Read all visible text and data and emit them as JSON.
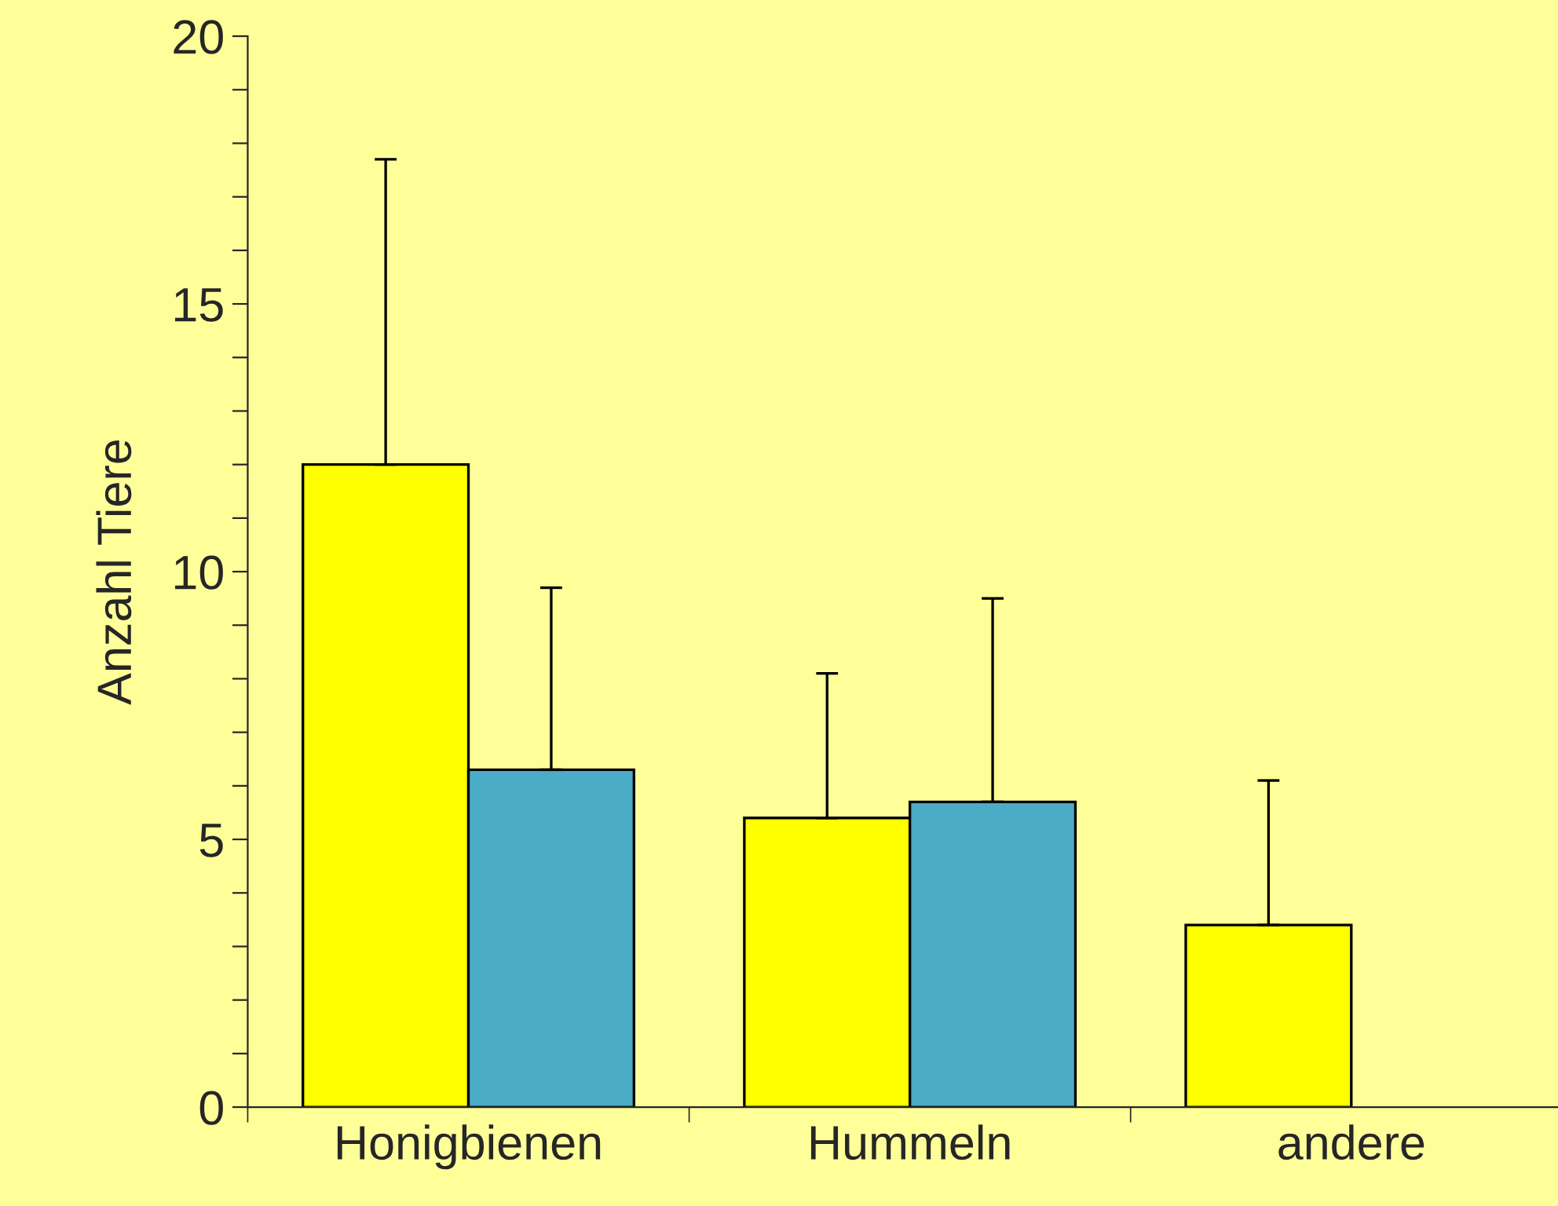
{
  "chart_data": {
    "type": "bar",
    "ylabel": "Anzahl Tiere",
    "categories": [
      "Honigbienen",
      "Hummeln",
      "andere"
    ],
    "series": [
      {
        "color": "#ffff00",
        "values": [
          12,
          5.4,
          3.4
        ],
        "errors": [
          [
            12,
            17.7
          ],
          [
            5.4,
            8.1
          ],
          [
            3.4,
            6.1
          ]
        ]
      },
      {
        "color": "#4bacc6",
        "values": [
          6.3,
          5.7,
          null
        ],
        "errors": [
          [
            6.3,
            9.7
          ],
          [
            5.7,
            9.5
          ],
          null
        ]
      }
    ],
    "ylim": [
      0,
      20
    ],
    "yticks": [
      0,
      {
        "value": 1,
        "label": null
      },
      {
        "value": 2,
        "label": null
      },
      {
        "value": 3,
        "label": null
      },
      {
        "value": 4,
        "label": null
      },
      5,
      {
        "value": 6,
        "label": null
      },
      {
        "value": 7,
        "label": null
      },
      {
        "value": 8,
        "label": null
      },
      {
        "value": 9,
        "label": null
      },
      10,
      {
        "value": 11,
        "label": null
      },
      {
        "value": 12,
        "label": null
      },
      {
        "value": 13,
        "label": null
      },
      {
        "value": 14,
        "label": null
      },
      15,
      {
        "value": 16,
        "label": null
      },
      {
        "value": 17,
        "label": null
      },
      {
        "value": 18,
        "label": null
      },
      {
        "value": 19,
        "label": null
      },
      20
    ],
    "grid": false,
    "legend": false
  }
}
